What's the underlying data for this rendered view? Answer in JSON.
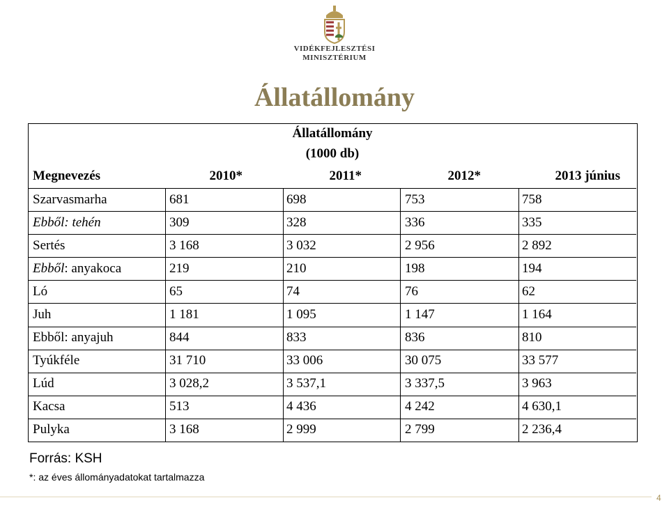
{
  "header": {
    "ministry_line1": "VIDÉKFEJLESZTÉSI",
    "ministry_line2": "MINISZTÉRIUM",
    "title": "Állatállomány"
  },
  "table": {
    "caption": "Állatállomány",
    "unit": "(1000 db)",
    "columns": [
      "Megnevezés",
      "2010*",
      "2011*",
      "2012*",
      "2013 június"
    ],
    "rows": [
      {
        "label": "Szarvasmarha",
        "values": [
          "681",
          "698",
          "753",
          "758"
        ]
      },
      {
        "label": "Ebből: tehén",
        "italic": true,
        "values": [
          "309",
          "328",
          "336",
          "335"
        ]
      },
      {
        "label": "Sertés",
        "values": [
          "3 168",
          "3 032",
          "2 956",
          "2 892"
        ]
      },
      {
        "label_italic": "Ebből",
        "label": ": anyakoca",
        "values": [
          "219",
          "210",
          "198",
          "194"
        ]
      },
      {
        "label": "Ló",
        "values": [
          "65",
          "74",
          "76",
          "62"
        ]
      },
      {
        "label": "Juh",
        "values": [
          "1 181",
          "1 095",
          "1 147",
          "1 164"
        ]
      },
      {
        "label": "Ebből: anyajuh",
        "values": [
          "844",
          "833",
          "836",
          "810"
        ]
      },
      {
        "label": "Tyúkféle",
        "values": [
          "31 710",
          "33 006",
          "30 075",
          "33 577"
        ]
      },
      {
        "label": "Lúd",
        "values": [
          "3 028,2",
          "3 537,1",
          "3 337,5",
          "3 963"
        ]
      },
      {
        "label": "Kacsa",
        "values": [
          "513",
          "4 436",
          "4 242",
          "4 630,1"
        ]
      },
      {
        "label": "Pulyka",
        "values": [
          "3 168",
          "2 999",
          "2 799",
          "2 236,4"
        ]
      }
    ]
  },
  "footer": {
    "source": "Forrás: KSH",
    "note": "*: az éves állományadatokat tartalmazza",
    "page_number": "4"
  }
}
